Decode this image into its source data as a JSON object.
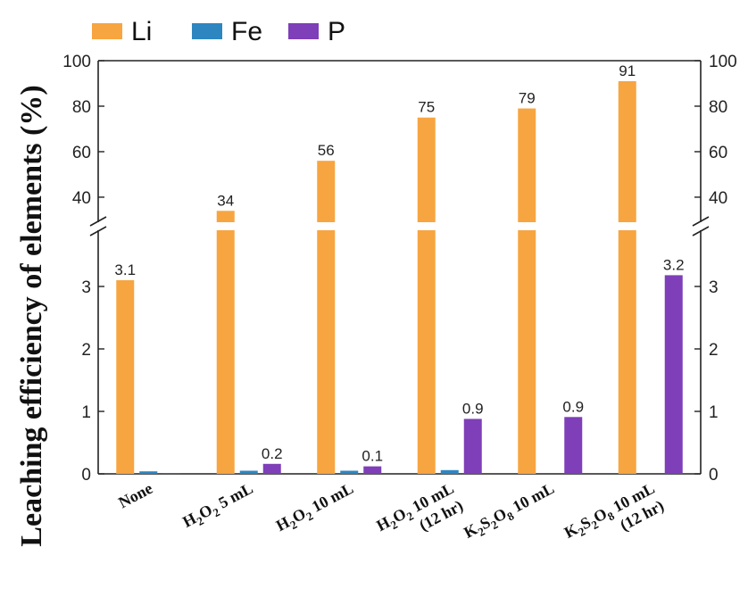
{
  "chart_data": {
    "type": "bar",
    "ylabel": "Leaching efficiency of elements (%)",
    "categories": [
      {
        "lines": [
          "None"
        ]
      },
      {
        "lines": [
          "H2O2 5 mL"
        ],
        "rich": [
          [
            [
              "H",
              0
            ],
            [
              "2",
              1
            ],
            [
              "O",
              0
            ],
            [
              "2",
              1
            ],
            [
              " 5 mL",
              0
            ]
          ]
        ]
      },
      {
        "lines": [
          "H2O2 10 mL"
        ],
        "rich": [
          [
            [
              "H",
              0
            ],
            [
              "2",
              1
            ],
            [
              "O",
              0
            ],
            [
              "2",
              1
            ],
            [
              " 10 mL",
              0
            ]
          ]
        ]
      },
      {
        "lines": [
          "H2O2 10 mL",
          "(12 hr)"
        ],
        "rich": [
          [
            [
              "H",
              0
            ],
            [
              "2",
              1
            ],
            [
              "O",
              0
            ],
            [
              "2",
              1
            ],
            [
              " 10 mL",
              0
            ]
          ],
          [
            [
              "(12 hr)",
              0
            ]
          ]
        ]
      },
      {
        "lines": [
          "K2S2O8 10 mL"
        ],
        "rich": [
          [
            [
              "K",
              0
            ],
            [
              "2",
              1
            ],
            [
              "S",
              0
            ],
            [
              "2",
              1
            ],
            [
              "O",
              0
            ],
            [
              "8",
              1
            ],
            [
              " 10 mL",
              0
            ]
          ]
        ]
      },
      {
        "lines": [
          "K2S2O8 10 mL",
          "(12 hr)"
        ],
        "rich": [
          [
            [
              "K",
              0
            ],
            [
              "2",
              1
            ],
            [
              "S",
              0
            ],
            [
              "2",
              1
            ],
            [
              "O",
              0
            ],
            [
              "8",
              1
            ],
            [
              " 10 mL",
              0
            ]
          ],
          [
            [
              "(12 hr)",
              0
            ]
          ]
        ]
      }
    ],
    "series": [
      {
        "name": "Li",
        "color": "#F7A541",
        "values": [
          3.1,
          34,
          56,
          75,
          79,
          91
        ],
        "labels": [
          "3.1",
          "34",
          "56",
          "75",
          "79",
          "91"
        ]
      },
      {
        "name": "Fe",
        "color": "#2E86C1",
        "values": [
          0.04,
          0.05,
          0.05,
          0.06,
          0.0,
          0.0
        ],
        "labels": [
          null,
          null,
          null,
          null,
          null,
          null
        ]
      },
      {
        "name": "P",
        "color": "#7E3FB8",
        "values": [
          0.01,
          0.16,
          0.12,
          0.88,
          0.91,
          3.18
        ],
        "labels": [
          null,
          "0.2",
          "0.1",
          "0.9",
          "0.9",
          "3.2"
        ]
      }
    ],
    "axis_break": {
      "lower_range": [
        0,
        3.9
      ],
      "upper_range": [
        29,
        100
      ],
      "lower_ticks": [
        "0",
        "1",
        "2",
        "3"
      ],
      "upper_ticks": [
        "40",
        "60",
        "80",
        "100"
      ]
    },
    "legend": {
      "position": "top-left",
      "entries": [
        "Li",
        "Fe",
        "P"
      ]
    }
  }
}
